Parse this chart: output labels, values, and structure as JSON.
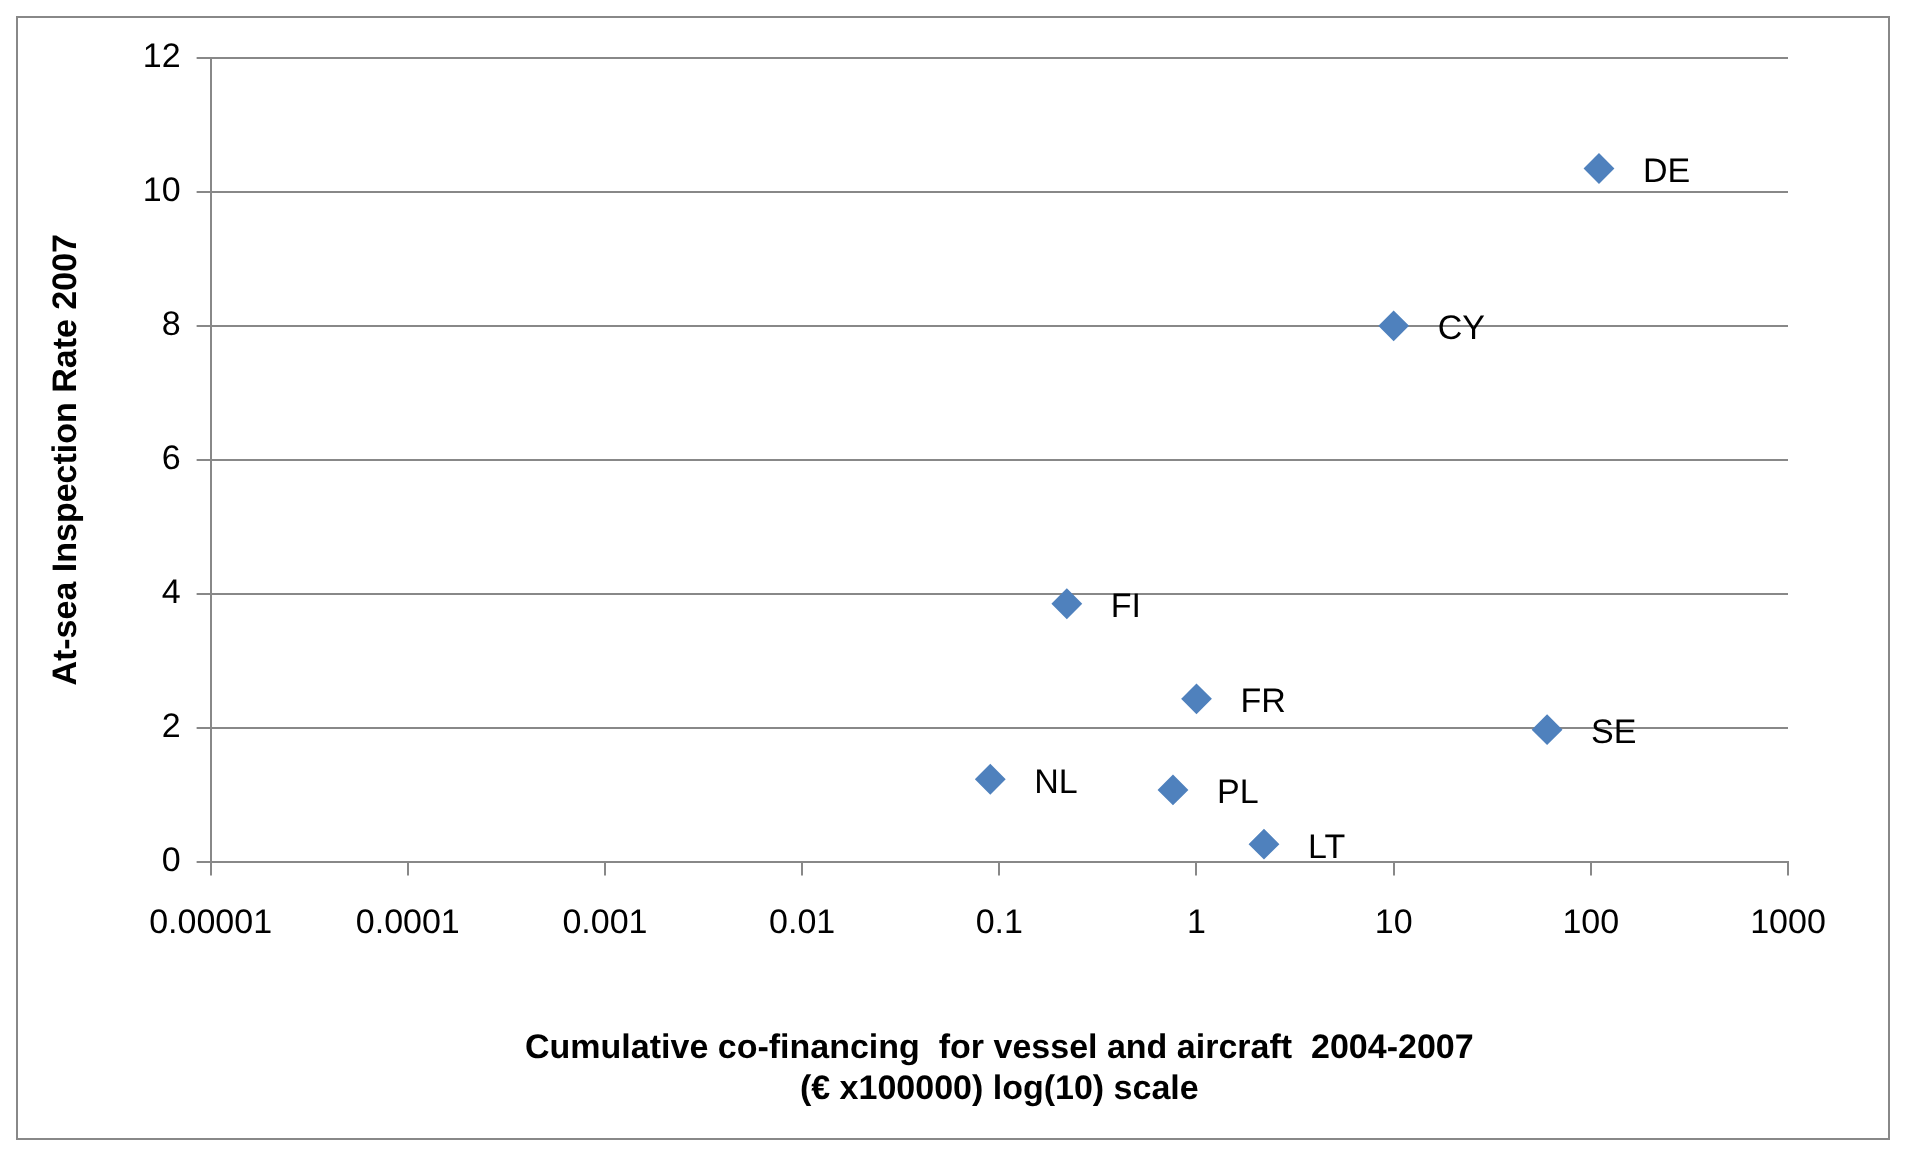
{
  "chart_data": {
    "type": "scatter",
    "xlabel": "Cumulative co-financing  for vessel and aircraft  2004-2007\n(€ x100000) log(10) scale",
    "ylabel": "At-sea Inspection Rate 2007",
    "series": [
      {
        "color": "#4f81bd",
        "x": [
          110,
          10,
          0.22,
          1,
          60,
          0.09,
          0.76,
          2.2
        ],
        "values": [
          10.35,
          8,
          3.85,
          2.43,
          1.97,
          1.23,
          1.07,
          0.26
        ]
      }
    ],
    "annotations": [
      {
        "text": "DE",
        "x": 110,
        "y": 10.35
      },
      {
        "text": "CY",
        "x": 10,
        "y": 8
      },
      {
        "text": "FI",
        "x": 0.22,
        "y": 3.85
      },
      {
        "text": "FR",
        "x": 1,
        "y": 2.43
      },
      {
        "text": "SE",
        "x": 60,
        "y": 1.97
      },
      {
        "text": "NL",
        "x": 0.09,
        "y": 1.23
      },
      {
        "text": "PL",
        "x": 0.76,
        "y": 1.07
      },
      {
        "text": "LT",
        "x": 2.2,
        "y": 0.26
      }
    ],
    "log": "x",
    "xlim": [
      1e-05,
      1000
    ],
    "xticks": [
      {
        "value": 1e-05,
        "label": "0.00001"
      },
      0.0001,
      0.001,
      0.01,
      0.1,
      1,
      10,
      100,
      1000
    ],
    "ylim": [
      0,
      12
    ],
    "yticks": [
      0,
      2,
      4,
      6,
      8,
      10,
      12
    ],
    "grid": "y",
    "legend": false,
    "marker": "diamond"
  }
}
